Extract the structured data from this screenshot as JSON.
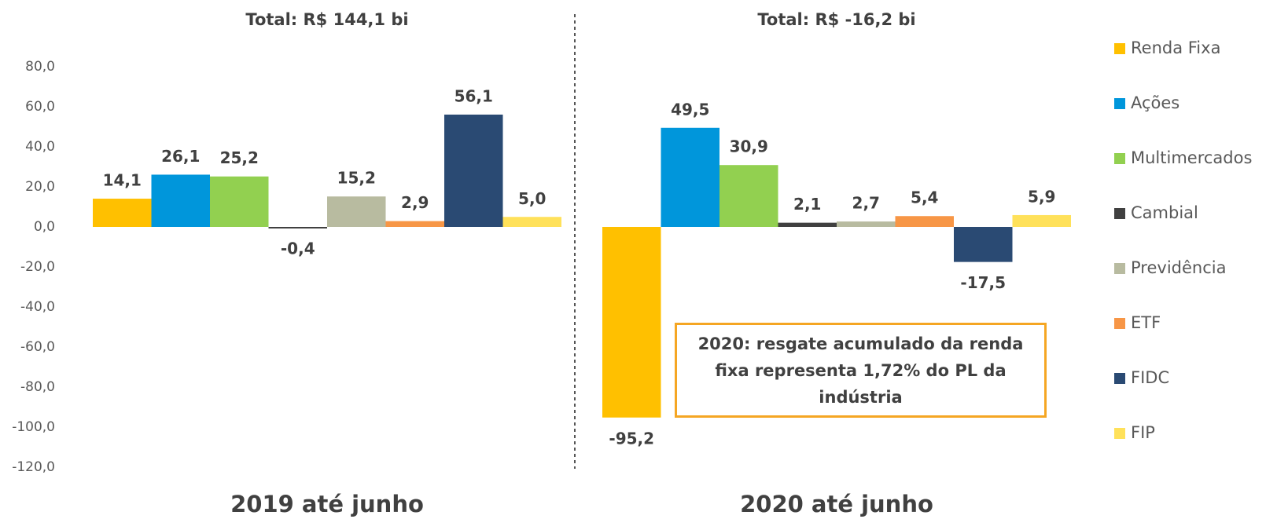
{
  "chart_data": {
    "type": "bar",
    "categories": [
      "2019 até junho",
      "2020 até junho"
    ],
    "group_titles": [
      "Total: R$ 144,1 bi",
      "Total: R$ -16,2 bi"
    ],
    "annotation": "2020: resgate acumulado da renda fixa representa 1,72% do PL da indústria",
    "ylim": [
      -120,
      80
    ],
    "yticks": [
      {
        "value": 80,
        "label": "80,0"
      },
      {
        "value": 60,
        "label": "60,0"
      },
      {
        "value": 40,
        "label": "40,0"
      },
      {
        "value": 20,
        "label": "20,0"
      },
      {
        "value": 0,
        "label": "0,0"
      },
      {
        "value": -20,
        "label": "-20,0"
      },
      {
        "value": -40,
        "label": "-40,0"
      },
      {
        "value": -60,
        "label": "-60,0"
      },
      {
        "value": -80,
        "label": "-80,0"
      },
      {
        "value": -100,
        "label": "-100,0"
      },
      {
        "value": -120,
        "label": "-120,0"
      }
    ],
    "grid": false,
    "legend": "right",
    "series": [
      {
        "name": "Renda Fixa",
        "color": "#FFC000",
        "values": [
          14.1,
          -95.2
        ],
        "value_labels": [
          "14,1",
          "-95,2"
        ]
      },
      {
        "name": "Ações",
        "color": "#0096DB",
        "values": [
          26.1,
          49.5
        ],
        "value_labels": [
          "26,1",
          "49,5"
        ]
      },
      {
        "name": "Multimercados",
        "color": "#92D050",
        "values": [
          25.2,
          30.9
        ],
        "value_labels": [
          "25,2",
          "30,9"
        ]
      },
      {
        "name": "Cambial",
        "color": "#404040",
        "values": [
          -0.4,
          2.1
        ],
        "value_labels": [
          "-0,4",
          "2,1"
        ]
      },
      {
        "name": "Previdência",
        "color": "#B8BBA0",
        "values": [
          15.2,
          2.7
        ],
        "value_labels": [
          "15,2",
          "2,7"
        ]
      },
      {
        "name": "ETF",
        "color": "#F79646",
        "values": [
          2.9,
          5.4
        ],
        "value_labels": [
          "2,9",
          "5,4"
        ]
      },
      {
        "name": "FIDC",
        "color": "#2A4A73",
        "values": [
          56.1,
          -17.5
        ],
        "value_labels": [
          "56,1",
          "-17,5"
        ]
      },
      {
        "name": "FIP",
        "color": "#FFE15A",
        "values": [
          5.0,
          5.9
        ],
        "value_labels": [
          "5,0",
          "5,9"
        ]
      }
    ]
  }
}
